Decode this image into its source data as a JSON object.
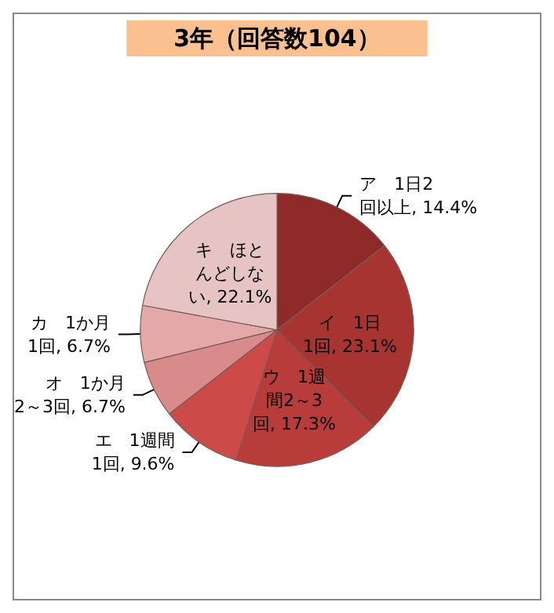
{
  "chart_data": {
    "type": "pie",
    "title": "3年（回答数104）",
    "categories": [
      "ア　1日2回以上",
      "イ　1日1回",
      "ウ　1週間2～3回",
      "エ　1週間1回",
      "オ　1か月2～3回",
      "カ　1か月1回",
      "キ　ほとんどしない"
    ],
    "values": [
      14.4,
      23.1,
      17.3,
      9.6,
      6.7,
      6.7,
      22.1
    ],
    "value_labels": [
      "14.4%",
      "23.1%",
      "17.3%",
      "9.6%",
      "6.7%",
      "6.7%",
      "22.1%"
    ],
    "colors": [
      "#8e2a28",
      "#a83432",
      "#b73c3a",
      "#cc4a48",
      "#d98a8a",
      "#e4a8a8",
      "#e6c4c4"
    ],
    "legend": false
  }
}
